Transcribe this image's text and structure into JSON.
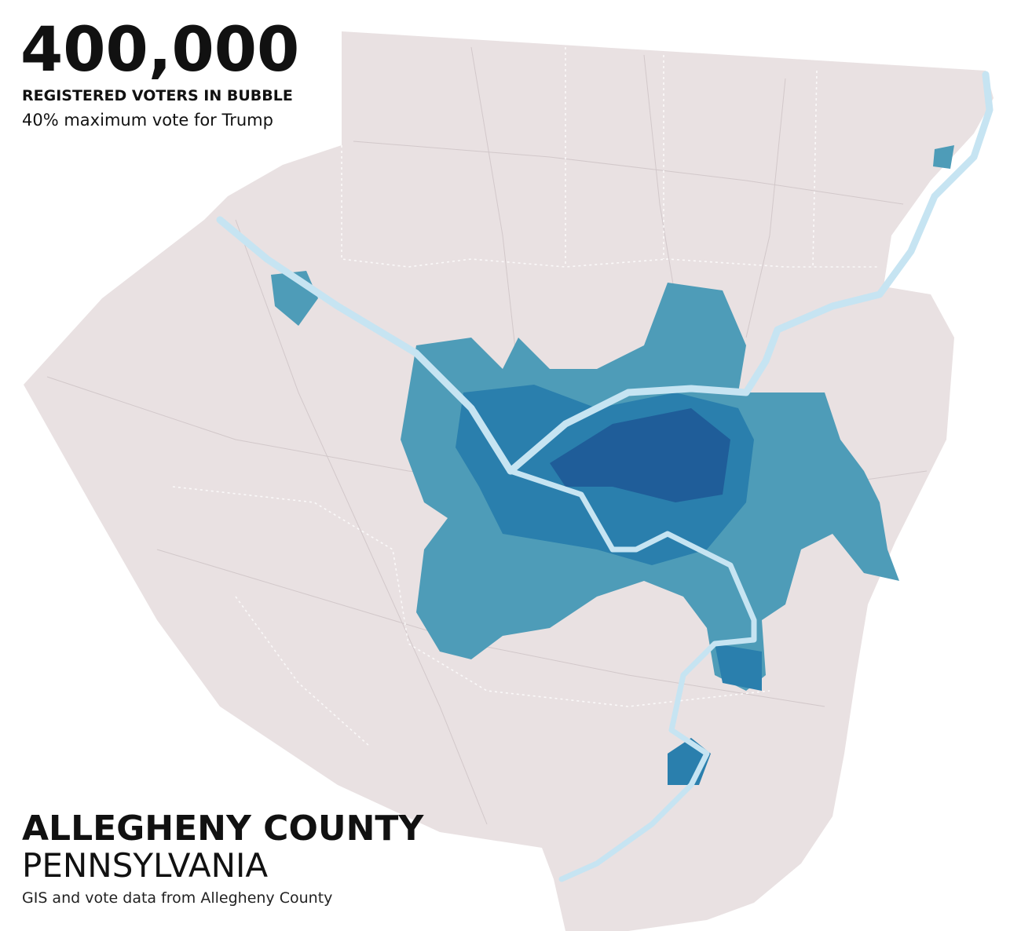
{
  "header": {
    "number": "400,000",
    "label": "REGISTERED VOTERS IN BUBBLE",
    "note": "40% maximum vote for Trump"
  },
  "footer": {
    "title": "ALLEGHENY COUNTY",
    "subtitle": "PENNSYLVANIA",
    "source": "GIS and vote data from Allegheny County"
  }
}
